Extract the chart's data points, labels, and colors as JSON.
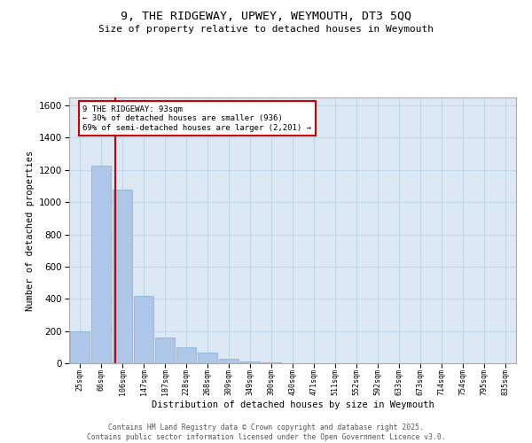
{
  "title_line1": "9, THE RIDGEWAY, UPWEY, WEYMOUTH, DT3 5QQ",
  "title_line2": "Size of property relative to detached houses in Weymouth",
  "xlabel": "Distribution of detached houses by size in Weymouth",
  "ylabel": "Number of detached properties",
  "categories": [
    "25sqm",
    "66sqm",
    "106sqm",
    "147sqm",
    "187sqm",
    "228sqm",
    "268sqm",
    "309sqm",
    "349sqm",
    "390sqm",
    "430sqm",
    "471sqm",
    "511sqm",
    "552sqm",
    "592sqm",
    "633sqm",
    "673sqm",
    "714sqm",
    "754sqm",
    "795sqm",
    "835sqm"
  ],
  "values": [
    200,
    1225,
    1080,
    420,
    160,
    100,
    65,
    30,
    10,
    5,
    2,
    0,
    0,
    0,
    0,
    0,
    0,
    0,
    0,
    0,
    0
  ],
  "bar_color": "#aec6e8",
  "bar_edge_color": "#7aafd4",
  "grid_color": "#c0d4e8",
  "background_color": "#dce9f5",
  "vline_color": "#cc0000",
  "annotation_text": "9 THE RIDGEWAY: 93sqm\n← 30% of detached houses are smaller (936)\n69% of semi-detached houses are larger (2,201) →",
  "annotation_box_facecolor": "white",
  "annotation_box_edgecolor": "#cc0000",
  "ylim": [
    0,
    1650
  ],
  "yticks": [
    0,
    200,
    400,
    600,
    800,
    1000,
    1200,
    1400,
    1600
  ],
  "footer_line1": "Contains HM Land Registry data © Crown copyright and database right 2025.",
  "footer_line2": "Contains public sector information licensed under the Open Government Licence v3.0."
}
